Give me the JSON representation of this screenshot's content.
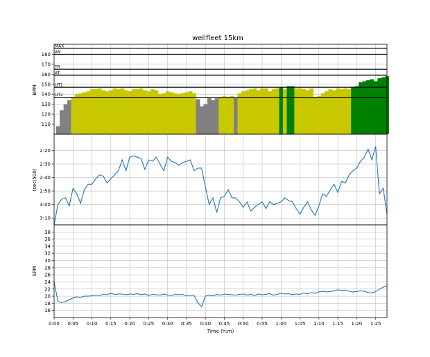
{
  "chart_data": {
    "title": "wellfleet 15km",
    "xlabel": "Time (h:m)",
    "x_range_minutes": [
      0,
      88
    ],
    "x_ticks": [
      "0:00",
      "0:05",
      "0:10",
      "0:15",
      "0:20",
      "0:25",
      "0:30",
      "0:35",
      "0:40",
      "0:45",
      "0:50",
      "0:55",
      "1:00",
      "1:05",
      "1:10",
      "1:15",
      "1:20",
      "1:25"
    ],
    "panels": [
      {
        "type": "area",
        "ylabel": "BPM",
        "ylim": [
          100,
          190
        ],
        "y_ticks": [
          "110",
          "120",
          "130",
          "140",
          "150",
          "160",
          "170",
          "180"
        ],
        "zones": [
          {
            "name": "MAX",
            "bpm": 186
          },
          {
            "name": "AN",
            "bpm": 180
          },
          {
            "name": "TR",
            "bpm": 165
          },
          {
            "name": "AT",
            "bpm": 159
          },
          {
            "name": "UT1",
            "bpm": 147
          },
          {
            "name": "UT2",
            "bpm": 137
          }
        ],
        "zone_colors": {
          "below_ut2": "#808080",
          "ut2": "#c8c800",
          "ut1": "#008000",
          "at": "#008000"
        },
        "heart_rate": {
          "t": [
            1,
            2,
            3,
            4,
            5,
            6,
            7,
            8,
            9,
            10,
            11,
            12,
            13,
            14,
            15,
            16,
            17,
            18,
            19,
            20,
            21,
            22,
            23,
            24,
            25,
            26,
            27,
            28,
            29,
            30,
            31,
            32,
            33,
            34,
            35,
            36,
            37,
            38,
            39,
            40,
            41,
            42,
            43,
            44,
            45,
            46,
            47,
            48,
            49,
            50,
            51,
            52,
            53,
            54,
            55,
            56,
            57,
            58,
            59,
            60,
            61,
            62,
            63,
            64,
            65,
            66,
            67,
            68,
            69,
            70,
            71,
            72,
            73,
            74,
            75,
            76,
            77,
            78,
            79,
            80,
            81,
            82,
            83,
            84,
            85,
            86,
            87,
            88
          ],
          "bpm": [
            108,
            124,
            130,
            134,
            137,
            140,
            141,
            142,
            143,
            145,
            145,
            146,
            144,
            143,
            144,
            146,
            145,
            146,
            144,
            143,
            145,
            145,
            146,
            144,
            143,
            145,
            144,
            140,
            141,
            143,
            142,
            141,
            140,
            141,
            142,
            143,
            141,
            135,
            128,
            130,
            136,
            134,
            136,
            137,
            138,
            137,
            138,
            136,
            141,
            143,
            144,
            145,
            146,
            144,
            146,
            146,
            143,
            145,
            146,
            147,
            145,
            148,
            148,
            146,
            146,
            145,
            144,
            146,
            137,
            138,
            141,
            143,
            145,
            144,
            146,
            145,
            146,
            145,
            147,
            148,
            152,
            153,
            154,
            155,
            153,
            156,
            157,
            158
          ]
        }
      },
      {
        "type": "line",
        "ylabel": "(sec/500)",
        "ylim": [
          195,
          128
        ],
        "y_ticks": [
          "2:20",
          "2:30",
          "2:40",
          "2:50",
          "3:00",
          "3:10"
        ],
        "pace": {
          "t": [
            0,
            1,
            2,
            3,
            4,
            5,
            6,
            7,
            8,
            9,
            10,
            11,
            12,
            13,
            14,
            15,
            16,
            17,
            18,
            19,
            20,
            21,
            22,
            23,
            24,
            25,
            26,
            27,
            28,
            29,
            30,
            31,
            32,
            33,
            34,
            35,
            36,
            37,
            38,
            39,
            40,
            41,
            42,
            43,
            44,
            45,
            46,
            47,
            48,
            49,
            50,
            51,
            52,
            53,
            54,
            55,
            56,
            57,
            58,
            59,
            60,
            61,
            62,
            63,
            64,
            65,
            66,
            67,
            68,
            69,
            70,
            71,
            72,
            73,
            74,
            75,
            76,
            77,
            78,
            79,
            80,
            81,
            82,
            83,
            84,
            85,
            86,
            87,
            88
          ],
          "sec": [
            195,
            180,
            176,
            175,
            181,
            168,
            172,
            179,
            169,
            165,
            165,
            161,
            158,
            159,
            164,
            161,
            158,
            155,
            147,
            155,
            145,
            144,
            145,
            146,
            154,
            147,
            148,
            145,
            150,
            155,
            145,
            148,
            149,
            151,
            149,
            148,
            147,
            155,
            153,
            153,
            167,
            180,
            175,
            186,
            175,
            174,
            169,
            175,
            175,
            178,
            182,
            178,
            185,
            182,
            180,
            178,
            183,
            178,
            180,
            179,
            178,
            175,
            177,
            178,
            183,
            187,
            182,
            178,
            184,
            188,
            181,
            172,
            174,
            169,
            165,
            171,
            163,
            164,
            158,
            155,
            153,
            148,
            145,
            139,
            147,
            137,
            172,
            168,
            187
          ]
        }
      },
      {
        "type": "line",
        "ylabel": "SPM",
        "ylim": [
          14,
          40
        ],
        "y_ticks": [
          "16",
          "18",
          "20",
          "22",
          "24",
          "26",
          "28",
          "30",
          "32",
          "34",
          "36",
          "38"
        ],
        "spm": {
          "t": [
            0,
            1,
            2,
            3,
            4,
            5,
            6,
            7,
            8,
            9,
            10,
            11,
            12,
            13,
            14,
            15,
            16,
            17,
            18,
            19,
            20,
            21,
            22,
            23,
            24,
            25,
            26,
            27,
            28,
            29,
            30,
            31,
            32,
            33,
            34,
            35,
            36,
            37,
            38,
            39,
            40,
            41,
            42,
            43,
            44,
            45,
            46,
            47,
            48,
            49,
            50,
            51,
            52,
            53,
            54,
            55,
            56,
            57,
            58,
            59,
            60,
            61,
            62,
            63,
            64,
            65,
            66,
            67,
            68,
            69,
            70,
            71,
            72,
            73,
            74,
            75,
            76,
            77,
            78,
            79,
            80,
            81,
            82,
            83,
            84,
            85,
            86,
            87,
            88
          ],
          "val": [
            24,
            18.5,
            18.2,
            18.5,
            19,
            19.5,
            19.8,
            19.6,
            20,
            20,
            20.1,
            20.3,
            20.2,
            20.5,
            20.4,
            20.8,
            20.5,
            20.6,
            20.6,
            20.4,
            20.6,
            20.5,
            20.7,
            20.4,
            20.6,
            20.2,
            20.5,
            20.4,
            20.3,
            20.6,
            20.3,
            20.2,
            20.5,
            20.4,
            20.5,
            20.1,
            20.3,
            20.2,
            18.2,
            17,
            20,
            20.3,
            20.1,
            20.5,
            20.3,
            20.6,
            20.5,
            20.4,
            20.3,
            20.5,
            20.6,
            20.3,
            20.5,
            20.2,
            20.6,
            20.4,
            20.5,
            20.7,
            20.3,
            20.5,
            20.8,
            20.6,
            20.7,
            20.4,
            20.6,
            20.5,
            20.9,
            20.7,
            21,
            20.8,
            21.2,
            21.4,
            21.2,
            21.3,
            21.5,
            21.8,
            21.6,
            21.7,
            21.4,
            21.2,
            21.3,
            21.5,
            21.4,
            21.0,
            20.9,
            21.3,
            22.0,
            22.5,
            23
          ]
        }
      }
    ]
  }
}
